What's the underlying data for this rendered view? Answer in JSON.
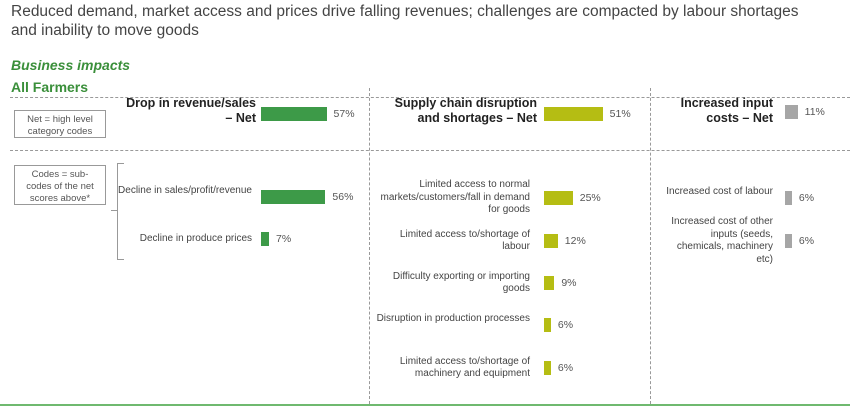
{
  "headline": "Reduced demand, market access and prices drive falling revenues; challenges are compacted by labour shortages and inability to move goods",
  "section_title": "Business impacts",
  "group_title": "All Farmers",
  "key": {
    "net": "Net = high level category codes",
    "codes": "Codes = sub-codes of the net scores above*"
  },
  "colors": {
    "green": "#3d9a48",
    "yellow_green": "#b5bd13",
    "grey": "#a6a6a6"
  },
  "chart_data": {
    "type": "bar",
    "unit": "%",
    "xlim": [
      0,
      100
    ],
    "panels": [
      {
        "net": {
          "label": "Drop in revenue/sales – Net",
          "value": 57,
          "pct_label": "57%"
        },
        "color": "#3d9a48",
        "sub": [
          {
            "label": "Decline in sales/profit/revenue",
            "value": 56,
            "pct_label": "56%"
          },
          {
            "label": "Decline in produce prices",
            "value": 7,
            "pct_label": "7%"
          }
        ]
      },
      {
        "net": {
          "label": "Supply chain disruption and shortages – Net",
          "value": 51,
          "pct_label": "51%"
        },
        "color": "#b5bd13",
        "sub": [
          {
            "label": "Limited access to normal markets/customers/fall in demand for goods",
            "value": 25,
            "pct_label": "25%"
          },
          {
            "label": "Limited access to/shortage of labour",
            "value": 12,
            "pct_label": "12%"
          },
          {
            "label": "Difficulty exporting or importing goods",
            "value": 9,
            "pct_label": "9%"
          },
          {
            "label": "Disruption in production processes",
            "value": 6,
            "pct_label": "6%"
          },
          {
            "label": "Limited access to/shortage of machinery and equipment",
            "value": 6,
            "pct_label": "6%"
          }
        ]
      },
      {
        "net": {
          "label": "Increased input costs – Net",
          "value": 11,
          "pct_label": "11%"
        },
        "color": "#a6a6a6",
        "sub": [
          {
            "label": "Increased cost of labour",
            "value": 6,
            "pct_label": "6%"
          },
          {
            "label": "Increased cost of other inputs (seeds, chemicals, machinery etc)",
            "value": 6,
            "pct_label": "6%"
          }
        ]
      }
    ]
  }
}
